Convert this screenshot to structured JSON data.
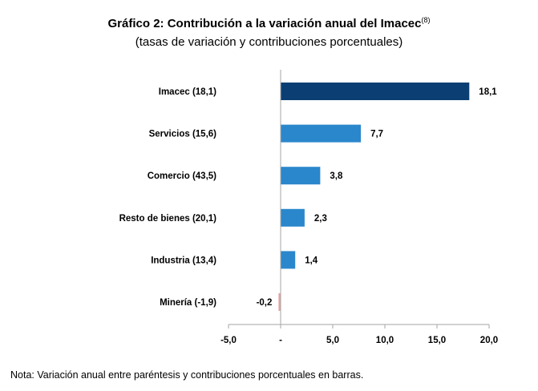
{
  "chart_data": {
    "type": "bar",
    "orientation": "horizontal",
    "title": "Gráfico 2: Contribución a la variación anual del Imacec",
    "title_superscript": "(8)",
    "subtitle": "(tasas de variación y contribuciones porcentuales)",
    "categories": [
      "Imacec (18,1)",
      "Servicios (15,6)",
      "Comercio (43,5)",
      "Resto de bienes (20,1)",
      "Industria (13,4)",
      "Minería (-1,9)"
    ],
    "values": [
      18.1,
      7.7,
      3.8,
      2.3,
      1.4,
      -0.2
    ],
    "value_labels": [
      "18,1",
      "7,7",
      "3,8",
      "2,3",
      "1,4",
      "-0,2"
    ],
    "bar_colors": [
      "#0b3f73",
      "#2b87cc",
      "#2b87cc",
      "#2b87cc",
      "#2b87cc",
      "#e8a3a3"
    ],
    "xlim": [
      -5,
      20
    ],
    "xticks": [
      -5,
      0,
      5,
      10,
      15,
      20
    ],
    "xtick_labels": [
      "-5,0",
      "-",
      "5,0",
      "10,0",
      "15,0",
      "20,0"
    ],
    "grid": false,
    "legend": "none"
  },
  "note": "Nota: Variación anual entre paréntesis y contribuciones porcentuales en barras."
}
